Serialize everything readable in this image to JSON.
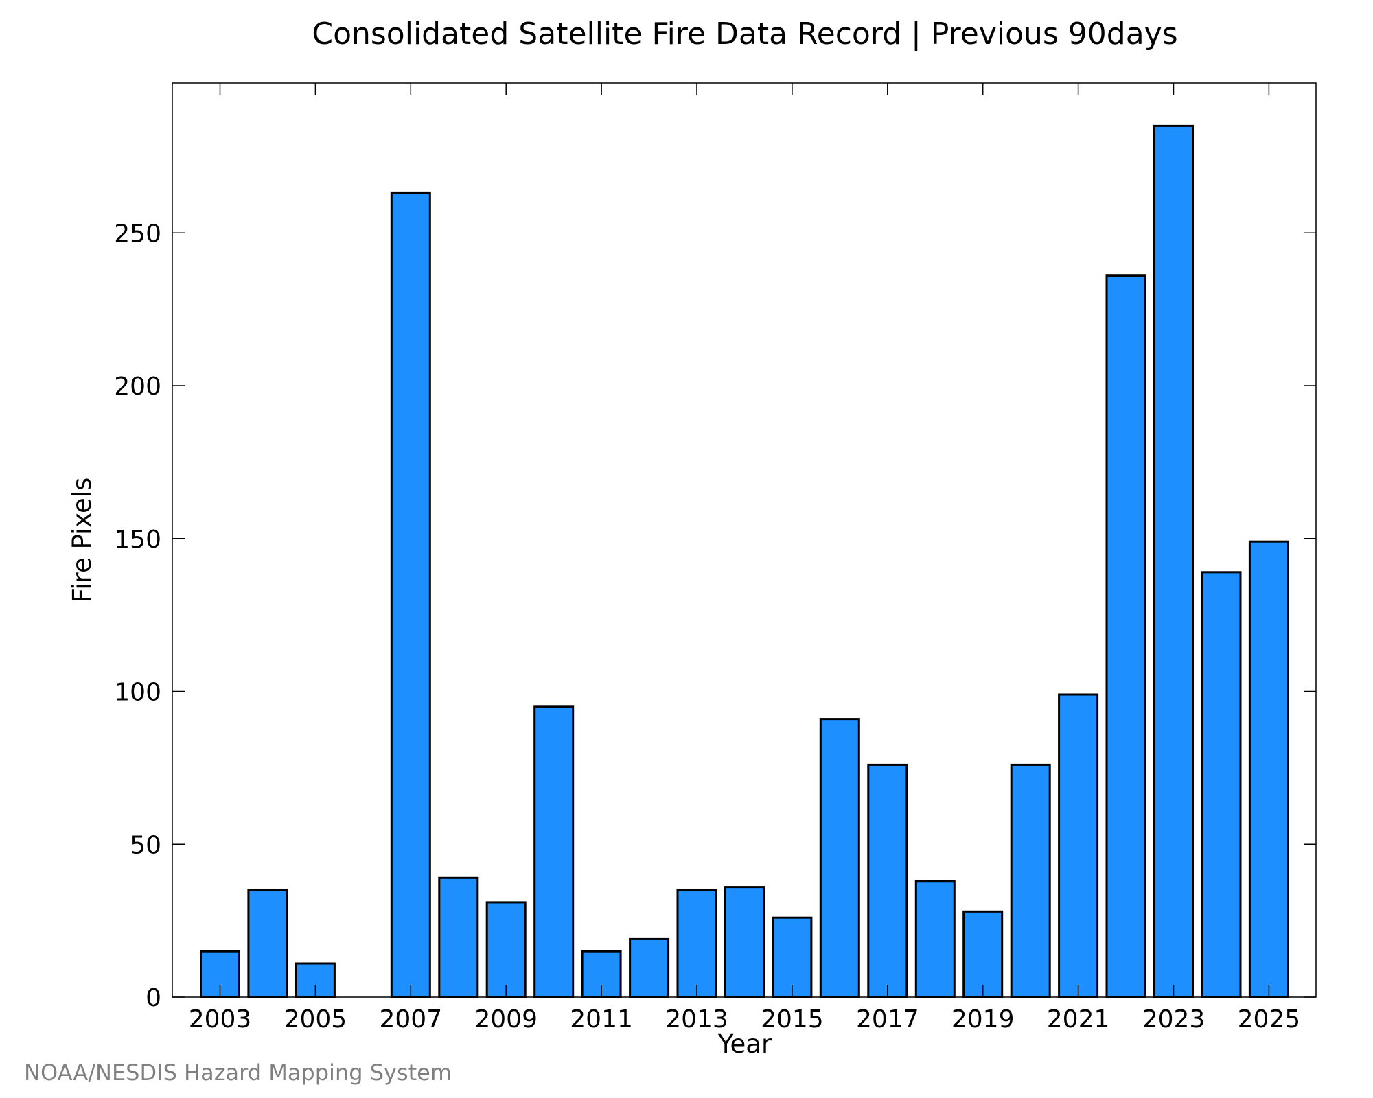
{
  "chart_data": {
    "type": "bar",
    "title": "Consolidated Satellite Fire Data Record | Previous 90days",
    "xlabel": "Year",
    "ylabel": "Fire Pixels",
    "categories": [
      "2003",
      "2004",
      "2005",
      "2006",
      "2007",
      "2008",
      "2009",
      "2010",
      "2011",
      "2012",
      "2013",
      "2014",
      "2015",
      "2016",
      "2017",
      "2018",
      "2019",
      "2020",
      "2021",
      "2022",
      "2023",
      "2024",
      "2025"
    ],
    "values": [
      15,
      35,
      11,
      0,
      263,
      39,
      31,
      95,
      15,
      19,
      35,
      36,
      26,
      91,
      76,
      38,
      28,
      76,
      99,
      236,
      285,
      139,
      149
    ],
    "x_tick_labels": [
      "2003",
      "2005",
      "2007",
      "2009",
      "2011",
      "2013",
      "2015",
      "2017",
      "2019",
      "2021",
      "2023",
      "2025"
    ],
    "y_ticks": [
      0,
      50,
      100,
      150,
      200,
      250
    ],
    "ylim": [
      0,
      299
    ],
    "bar_color": "#1e8fff",
    "bar_edge_color": "#000000",
    "grid": false,
    "legend": "none"
  },
  "credit": "NOAA/NESDIS Hazard Mapping System"
}
